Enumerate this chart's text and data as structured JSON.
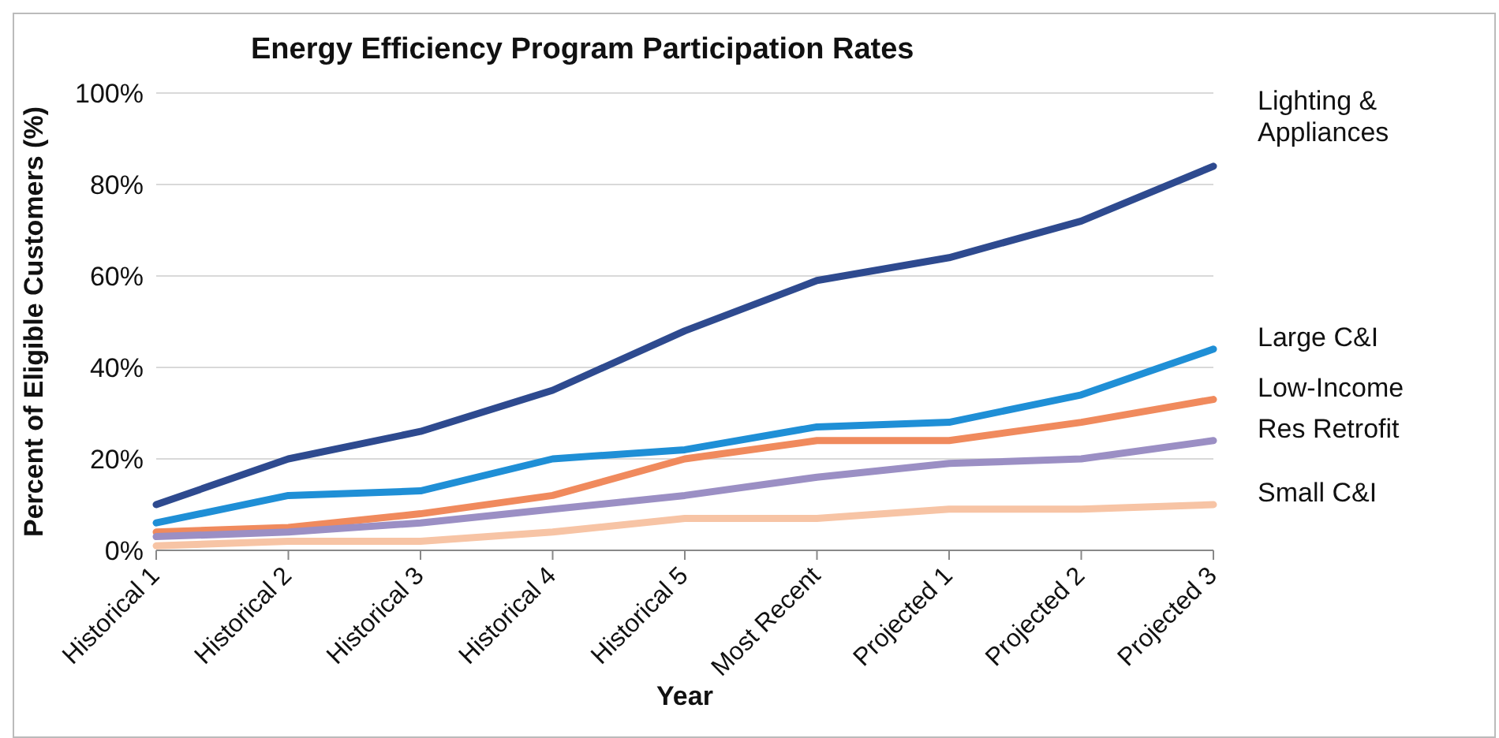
{
  "chart_data": {
    "type": "line",
    "title": "Energy Efficiency Program Participation Rates",
    "xlabel": "Year",
    "ylabel": "Percent of Eligible Customers (%)",
    "categories": [
      "Historical 1",
      "Historical 2",
      "Historical 3",
      "Historical 4",
      "Historical 5",
      "Most Recent",
      "Projected 1",
      "Projected 2",
      "Projected 3"
    ],
    "series": [
      {
        "name": "Lighting & Appliances",
        "color": "#2e4a8f",
        "values": [
          10,
          20,
          26,
          35,
          48,
          59,
          64,
          72,
          84
        ]
      },
      {
        "name": "Large C&I",
        "color": "#1f8fd6",
        "values": [
          6,
          12,
          13,
          20,
          22,
          27,
          28,
          34,
          44
        ]
      },
      {
        "name": "Low-Income",
        "color": "#f08a5d",
        "values": [
          4,
          5,
          8,
          12,
          20,
          24,
          24,
          28,
          33
        ]
      },
      {
        "name": "Res Retrofit",
        "color": "#9b8fc4",
        "values": [
          3,
          4,
          6,
          9,
          12,
          16,
          19,
          20,
          24
        ]
      },
      {
        "name": "Small C&I",
        "color": "#f7c4a5",
        "values": [
          1,
          2,
          2,
          4,
          7,
          7,
          9,
          9,
          10
        ]
      }
    ],
    "ylim": [
      0,
      100
    ],
    "yticks": [
      {
        "value": 0,
        "label": "0%"
      },
      {
        "value": 20,
        "label": "20%"
      },
      {
        "value": 40,
        "label": "40%"
      },
      {
        "value": 60,
        "label": "60%"
      },
      {
        "value": 80,
        "label": "80%"
      },
      {
        "value": 100,
        "label": "100%"
      }
    ],
    "grid": "y",
    "legend": false,
    "marker": "none",
    "line_style": "solid"
  }
}
